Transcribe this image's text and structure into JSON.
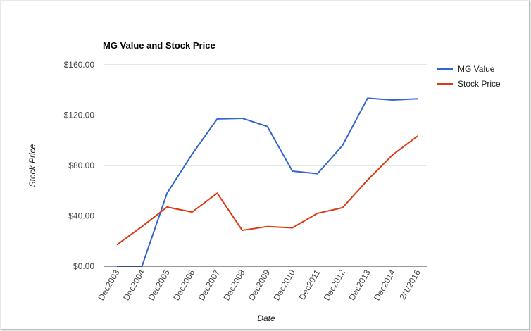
{
  "chart_data": {
    "type": "line",
    "title": "MG Value and Stock Price",
    "xlabel": "Date",
    "ylabel": "Stock Price",
    "ylim": [
      0,
      160
    ],
    "yticks": [
      0,
      40,
      80,
      120,
      160
    ],
    "ytick_labels": [
      "$0.00",
      "$40.00",
      "$80.00",
      "$120.00",
      "$160.00"
    ],
    "categories": [
      "Dec2003",
      "Dec2004",
      "Dec2005",
      "Dec2006",
      "Dec2007",
      "Dec2008",
      "Dec2009",
      "Dec2010",
      "Dec2011",
      "Dec2012",
      "Dec2013",
      "Dec2014",
      "2/1/2016"
    ],
    "grid": true,
    "legend_position": "right",
    "series": [
      {
        "name": "MG Value",
        "color": "#3366cc",
        "values": [
          0,
          0,
          58,
          89,
          117,
          117.5,
          111,
          75.5,
          73.5,
          96,
          133.5,
          132,
          133
        ]
      },
      {
        "name": "Stock Price",
        "color": "#dc3912",
        "values": [
          17,
          31.5,
          47,
          43,
          58,
          28.5,
          31.5,
          30.5,
          42,
          46.5,
          68.5,
          88.5,
          103.5
        ]
      }
    ]
  }
}
